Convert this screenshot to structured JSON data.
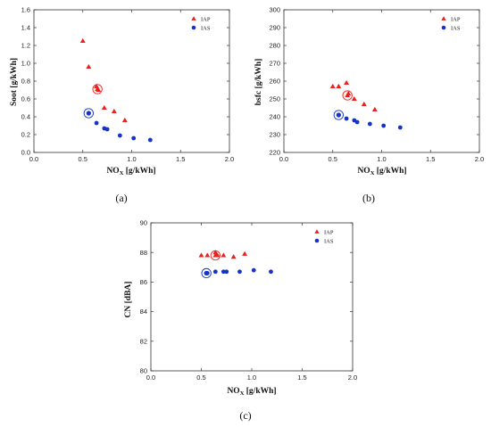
{
  "colors": {
    "iap": "#e8211f",
    "ias": "#1532c9",
    "axis": "#333333"
  },
  "chart_data": [
    {
      "type": "scatter",
      "panel_label": "(a)",
      "xlabel": "NO",
      "xlabel_sub": "X",
      "xlabel_unit": " [g/kWh]",
      "ylabel": "Soot [g/kWh]",
      "xlim": [
        0.0,
        2.0
      ],
      "ylim": [
        0.0,
        1.6
      ],
      "xticks": [
        "0.0",
        "0.5",
        "1.0",
        "1.5",
        "2.0"
      ],
      "yticks": [
        "0.0",
        "0.2",
        "0.4",
        "0.6",
        "0.8",
        "1.0",
        "1.2",
        "1.4",
        "1.6"
      ],
      "legend_position": "top-right",
      "series": [
        {
          "name": "IAP",
          "marker": "triangle",
          "x": [
            0.5,
            0.56,
            0.64,
            0.66,
            0.72,
            0.82,
            0.93
          ],
          "y": [
            1.25,
            0.96,
            0.74,
            0.7,
            0.5,
            0.46,
            0.36
          ],
          "highlight": [
            0.65,
            0.71
          ]
        },
        {
          "name": "IAS",
          "marker": "circle",
          "x": [
            0.56,
            0.64,
            0.72,
            0.75,
            0.88,
            1.02,
            1.19
          ],
          "y": [
            0.44,
            0.33,
            0.27,
            0.26,
            0.19,
            0.16,
            0.14
          ],
          "highlight": [
            0.56,
            0.44
          ]
        }
      ]
    },
    {
      "type": "scatter",
      "panel_label": "(b)",
      "xlabel": "NO",
      "xlabel_sub": "X",
      "xlabel_unit": " [g/kWh]",
      "ylabel": "bsfc [g/kWh]",
      "xlim": [
        0.0,
        2.0
      ],
      "ylim": [
        220,
        300
      ],
      "xticks": [
        "0.0",
        "0.5",
        "1.0",
        "1.5",
        "2.0"
      ],
      "yticks": [
        "220",
        "230",
        "240",
        "250",
        "260",
        "270",
        "280",
        "290",
        "300"
      ],
      "legend_position": "top-right",
      "series": [
        {
          "name": "IAP",
          "marker": "triangle",
          "x": [
            0.5,
            0.56,
            0.64,
            0.66,
            0.72,
            0.82,
            0.93
          ],
          "y": [
            257,
            257,
            259,
            253,
            250,
            247,
            244
          ],
          "highlight": [
            0.65,
            252
          ]
        },
        {
          "name": "IAS",
          "marker": "circle",
          "x": [
            0.56,
            0.64,
            0.72,
            0.75,
            0.88,
            1.02,
            1.19
          ],
          "y": [
            241,
            239,
            238,
            237,
            236,
            235,
            234
          ],
          "highlight": [
            0.56,
            241
          ]
        }
      ]
    },
    {
      "type": "scatter",
      "panel_label": "(c)",
      "xlabel": "NO",
      "xlabel_sub": "X",
      "xlabel_unit": " [g/kWh]",
      "ylabel": "CN [dBA]",
      "xlim": [
        0.0,
        2.0
      ],
      "ylim": [
        80,
        90
      ],
      "xticks": [
        "0.0",
        "0.5",
        "1.0",
        "1.5",
        "2.0"
      ],
      "yticks": [
        "80",
        "82",
        "84",
        "86",
        "88",
        "90"
      ],
      "legend_position": "top-right",
      "series": [
        {
          "name": "IAP",
          "marker": "triangle",
          "x": [
            0.5,
            0.56,
            0.64,
            0.66,
            0.72,
            0.82,
            0.93
          ],
          "y": [
            87.8,
            87.8,
            88.0,
            87.8,
            87.8,
            87.7,
            87.9
          ],
          "highlight": [
            0.64,
            87.8
          ]
        },
        {
          "name": "IAS",
          "marker": "circle",
          "x": [
            0.56,
            0.64,
            0.72,
            0.75,
            0.88,
            1.02,
            1.19
          ],
          "y": [
            86.6,
            86.7,
            86.7,
            86.7,
            86.7,
            86.8,
            86.7
          ],
          "highlight": [
            0.55,
            86.6
          ]
        }
      ]
    }
  ]
}
